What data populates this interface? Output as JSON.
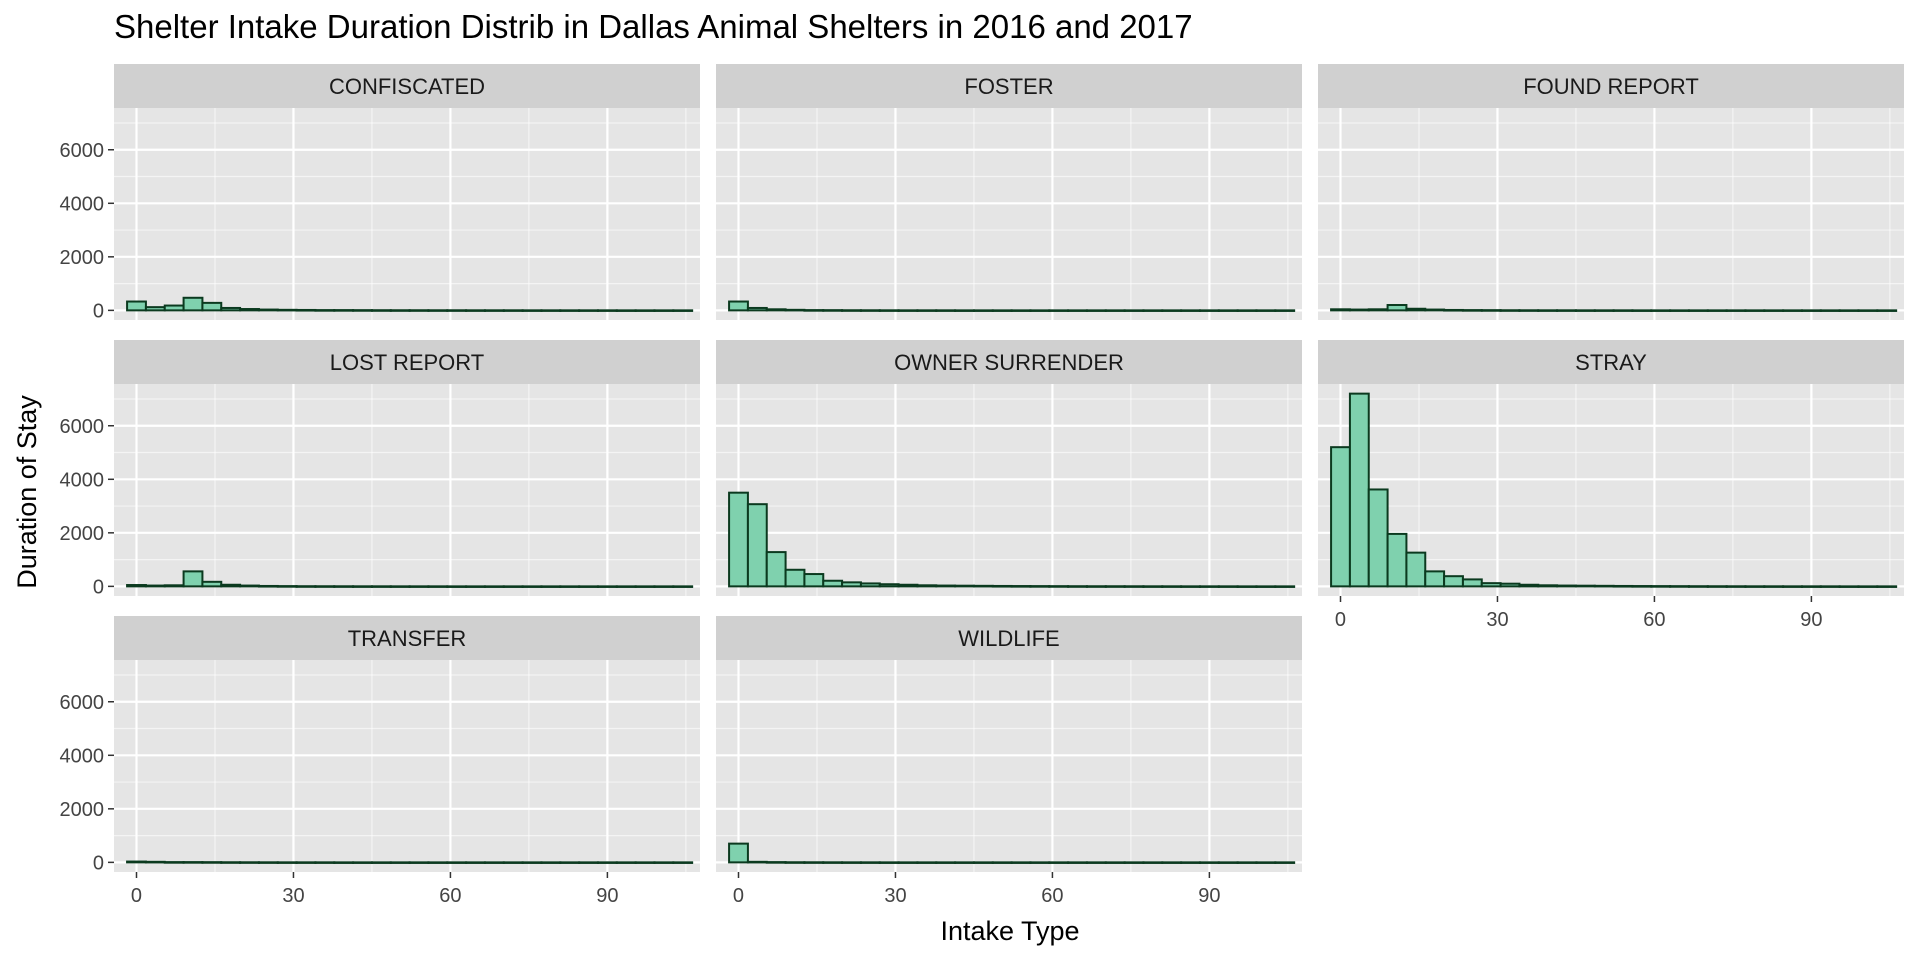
{
  "chart_data": {
    "type": "bar",
    "title": "Shelter Intake Duration Distrib in Dallas Animal Shelters in 2016 and 2017",
    "xlabel": "Intake Type",
    "ylabel": "Duration of Stay",
    "xlim": [
      -4.3,
      107.7
    ],
    "ylim": [
      -360,
      7560
    ],
    "x_ticks": [
      0,
      30,
      60,
      90
    ],
    "y_ticks": [
      0,
      2000,
      4000,
      6000
    ],
    "bin_width": 3.6,
    "bin_start": -1.8,
    "colors": {
      "panel_bg": "#e5e5e5",
      "strip_bg": "#d0d0d0",
      "grid": "#ffffff",
      "bar_fill": "#7fd1ae",
      "bar_stroke": "#0b3a1f",
      "text": "#000000",
      "tick_text": "#444444"
    },
    "facets": [
      {
        "name": "CONFISCATED",
        "values": [
          330,
          120,
          180,
          470,
          280,
          90,
          50,
          30,
          20,
          15,
          10,
          10,
          8,
          6,
          5,
          5,
          4,
          4,
          3,
          3,
          3,
          2,
          2,
          2,
          2,
          2,
          1,
          1,
          1,
          1
        ]
      },
      {
        "name": "FOSTER",
        "values": [
          330,
          90,
          40,
          20,
          10,
          8,
          5,
          4,
          3,
          2,
          2,
          2,
          1,
          1,
          1,
          1,
          1,
          1,
          1,
          1,
          1,
          1,
          1,
          1,
          1,
          1,
          1,
          1,
          1,
          1
        ]
      },
      {
        "name": "FOUND REPORT",
        "values": [
          40,
          30,
          40,
          200,
          60,
          30,
          15,
          10,
          8,
          5,
          4,
          3,
          3,
          2,
          2,
          2,
          1,
          1,
          1,
          1,
          1,
          1,
          1,
          1,
          1,
          1,
          1,
          1,
          1,
          1
        ]
      },
      {
        "name": "LOST REPORT",
        "values": [
          50,
          30,
          40,
          560,
          170,
          60,
          30,
          15,
          10,
          6,
          5,
          4,
          3,
          3,
          2,
          2,
          2,
          1,
          1,
          1,
          1,
          1,
          1,
          1,
          1,
          1,
          1,
          1,
          1,
          1
        ]
      },
      {
        "name": "OWNER SURRENDER",
        "values": [
          3500,
          3070,
          1280,
          620,
          460,
          210,
          150,
          110,
          80,
          60,
          40,
          30,
          25,
          20,
          15,
          12,
          10,
          8,
          6,
          5,
          5,
          4,
          3,
          3,
          2,
          2,
          2,
          1,
          1,
          1
        ]
      },
      {
        "name": "STRAY",
        "values": [
          5200,
          7200,
          3620,
          1960,
          1260,
          560,
          380,
          260,
          120,
          100,
          60,
          40,
          30,
          25,
          20,
          15,
          12,
          10,
          8,
          6,
          5,
          4,
          3,
          3,
          2,
          2,
          2,
          1,
          1,
          1
        ]
      },
      {
        "name": "TRANSFER",
        "values": [
          30,
          20,
          10,
          10,
          8,
          5,
          4,
          3,
          2,
          2,
          2,
          1,
          1,
          1,
          1,
          1,
          1,
          1,
          1,
          1,
          1,
          1,
          1,
          1,
          1,
          1,
          1,
          1,
          1,
          1
        ]
      },
      {
        "name": "WILDLIFE",
        "values": [
          700,
          20,
          10,
          5,
          4,
          3,
          2,
          2,
          1,
          1,
          1,
          1,
          1,
          1,
          1,
          1,
          1,
          1,
          1,
          1,
          1,
          1,
          1,
          1,
          1,
          1,
          1,
          1,
          1,
          1
        ]
      }
    ]
  }
}
